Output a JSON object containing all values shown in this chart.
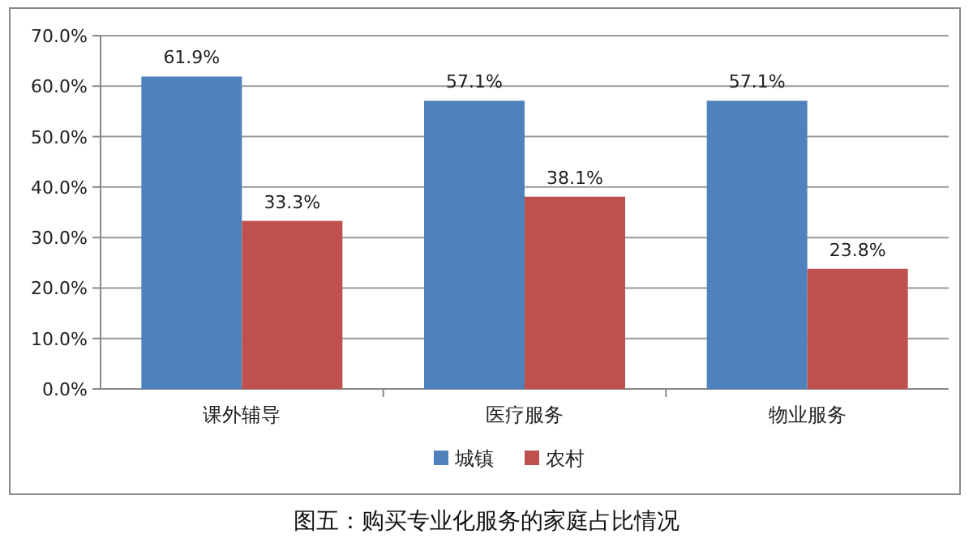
{
  "chart_data": {
    "type": "bar",
    "title": "图五：购买专业化服务的家庭占比情况",
    "categories": [
      "课外辅导",
      "医疗服务",
      "物业服务"
    ],
    "series": [
      {
        "name": "城镇",
        "color": "#4f81bd",
        "values": [
          61.9,
          57.1,
          57.1
        ],
        "value_labels": [
          "61.9%",
          "57.1%",
          "57.1%"
        ]
      },
      {
        "name": "农村",
        "color": "#c0504d",
        "values": [
          33.3,
          38.1,
          23.8
        ],
        "value_labels": [
          "33.3%",
          "38.1%",
          "23.8%"
        ]
      }
    ],
    "ylim": [
      0,
      70
    ],
    "yticks": [
      {
        "value": 0,
        "label": "0.0%"
      },
      {
        "value": 10,
        "label": "10.0%"
      },
      {
        "value": 20,
        "label": "20.0%"
      },
      {
        "value": 30,
        "label": "30.0%"
      },
      {
        "value": 40,
        "label": "40.0%"
      },
      {
        "value": 50,
        "label": "50.0%"
      },
      {
        "value": 60,
        "label": "60.0%"
      },
      {
        "value": 70,
        "label": "70.0%"
      }
    ],
    "grid": "y",
    "legend": "bottom"
  }
}
